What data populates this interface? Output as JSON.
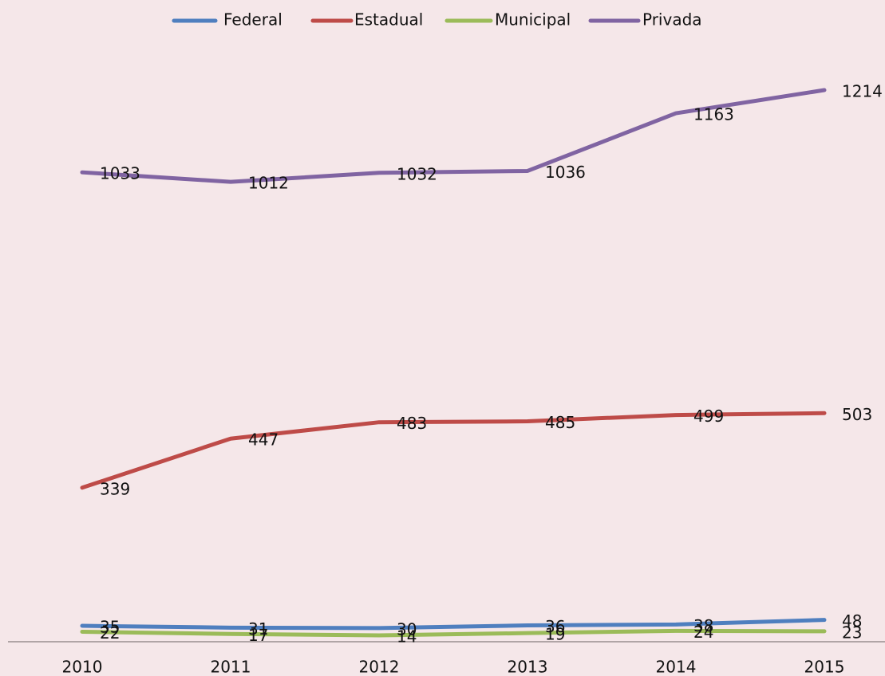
{
  "chart_data": {
    "type": "line",
    "categories": [
      "2010",
      "2011",
      "2012",
      "2013",
      "2014",
      "2015"
    ],
    "series": [
      {
        "name": "Federal",
        "color": "#4f7fbf",
        "values": [
          35,
          31,
          30,
          36,
          38,
          48
        ]
      },
      {
        "name": "Estadual",
        "color": "#be4b48",
        "values": [
          339,
          447,
          483,
          485,
          499,
          503
        ]
      },
      {
        "name": "Municipal",
        "color": "#9bbb59",
        "values": [
          22,
          17,
          14,
          19,
          24,
          23
        ]
      },
      {
        "name": "Privada",
        "color": "#8064a2",
        "values": [
          1033,
          1012,
          1032,
          1036,
          1163,
          1214
        ]
      }
    ],
    "ylim": [
      0,
      1300
    ],
    "legend": "top"
  }
}
